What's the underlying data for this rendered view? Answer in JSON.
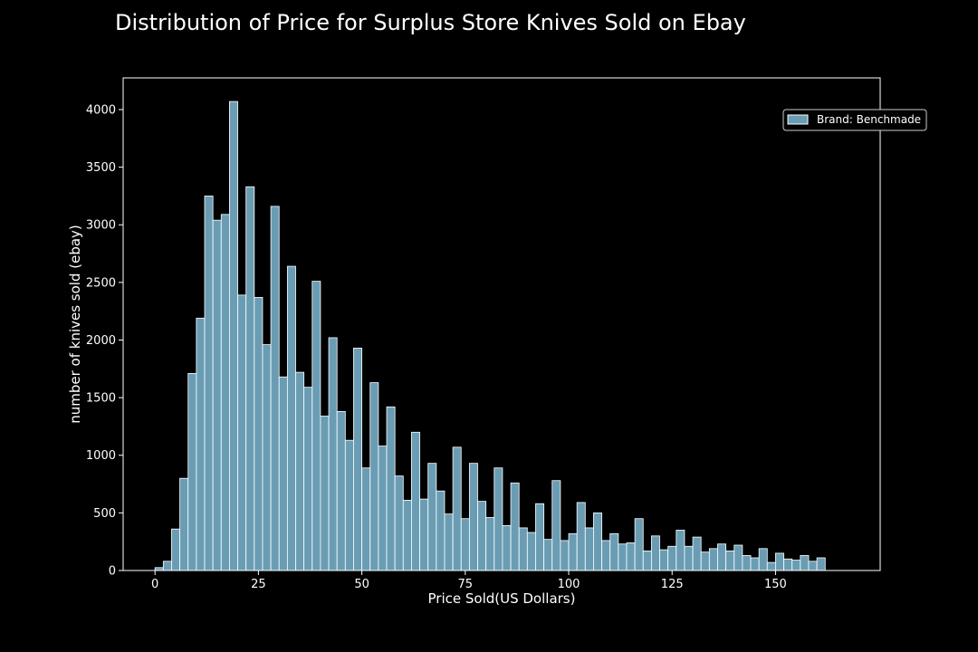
{
  "chart_data": {
    "type": "bar",
    "title": "Distribution of Price for Surplus Store Knives Sold on Ebay",
    "xlabel": "Price Sold(US Dollars)",
    "ylabel": "number of knives sold (ebay)",
    "xlim": [
      -7.7,
      175.3
    ],
    "ylim": [
      0,
      4275
    ],
    "x_ticks": [
      0,
      25,
      50,
      75,
      100,
      125,
      150
    ],
    "y_ticks": [
      0,
      500,
      1000,
      1500,
      2000,
      2500,
      3000,
      3500,
      4000
    ],
    "bin_width": 2,
    "bin_start": 0,
    "counts": [
      25,
      80,
      360,
      800,
      1710,
      2190,
      3250,
      3040,
      3090,
      4070,
      2390,
      3330,
      2370,
      1960,
      3160,
      1680,
      2640,
      1720,
      1590,
      2510,
      1340,
      2020,
      1380,
      1130,
      1930,
      890,
      1630,
      1080,
      1420,
      820,
      610,
      1200,
      620,
      930,
      690,
      490,
      1070,
      450,
      930,
      600,
      460,
      890,
      390,
      760,
      370,
      330,
      580,
      270,
      780,
      260,
      320,
      590,
      370,
      500,
      260,
      320,
      230,
      240,
      450,
      170,
      300,
      180,
      210,
      350,
      210,
      290,
      160,
      190,
      230,
      170,
      220,
      130,
      110,
      190,
      70,
      150,
      100,
      90,
      130,
      80,
      110
    ],
    "series": [
      {
        "name": "Brand: Benchmade",
        "color": "#6a9db4"
      }
    ],
    "bar_color": "#6a9db4",
    "bar_edge_color": "#ffffff",
    "background": "#000000",
    "grid": false,
    "legend_position": "top-right"
  }
}
